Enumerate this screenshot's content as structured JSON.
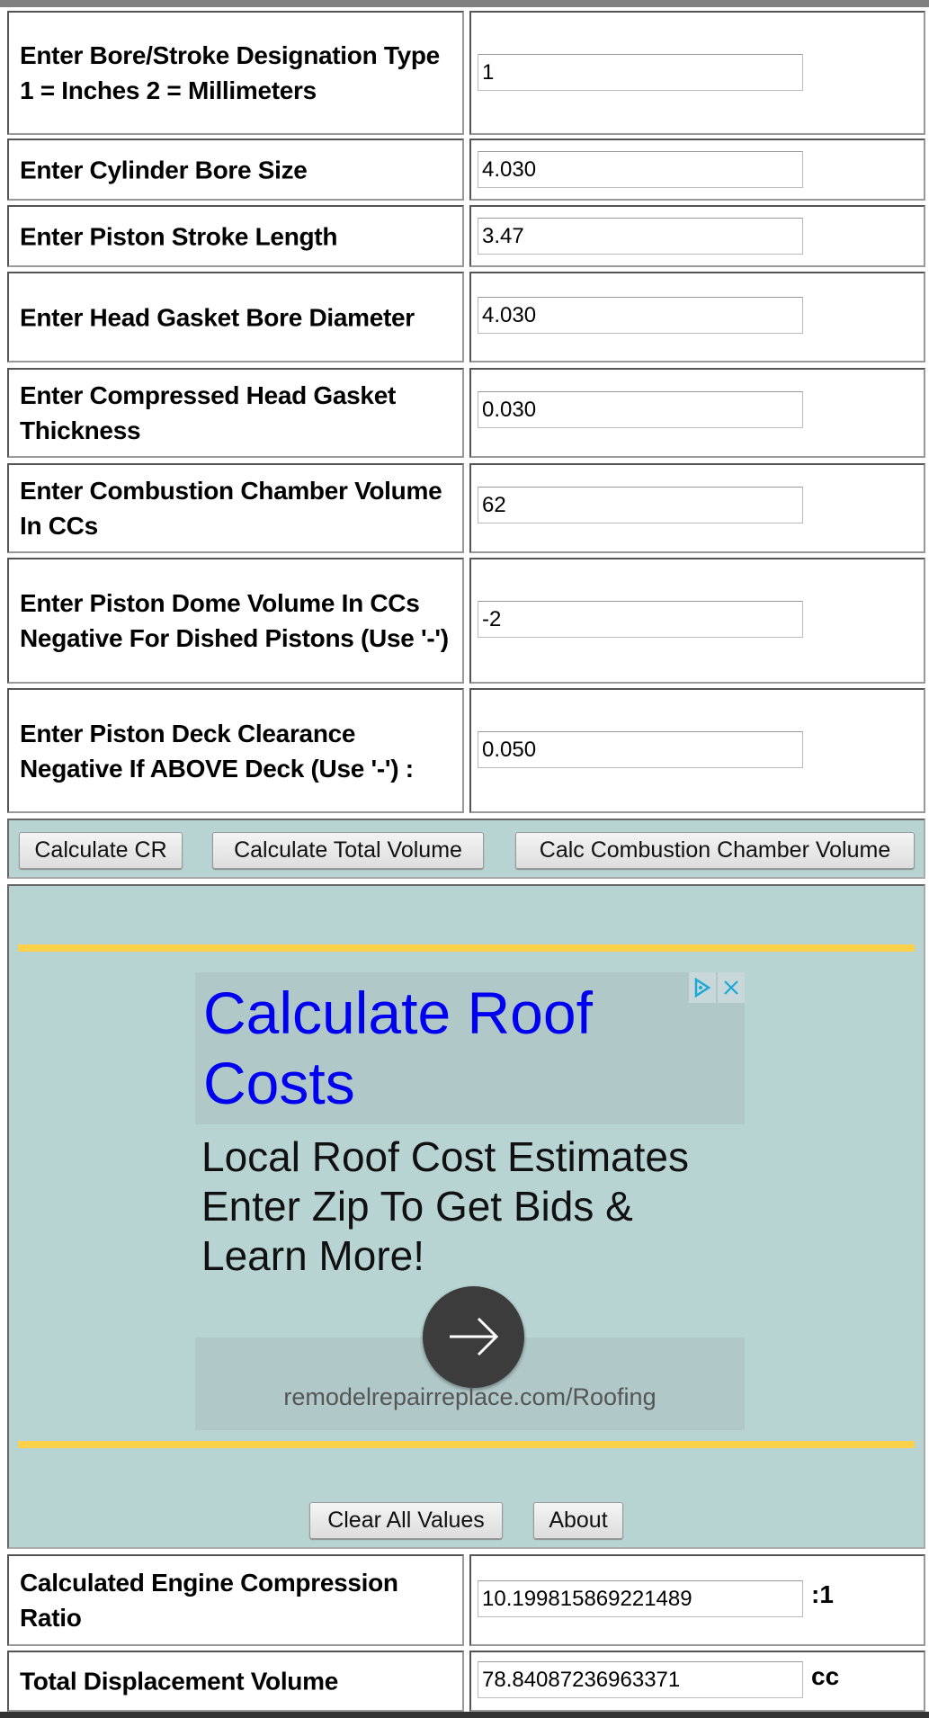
{
  "inputs": [
    {
      "label_lines": [
        "Enter Bore/Stroke Designation Type",
        "1 = Inches 2 = Millimeters"
      ],
      "value": "1"
    },
    {
      "label": "Enter Cylinder Bore Size",
      "value": "4.030"
    },
    {
      "label": "Enter Piston Stroke Length",
      "value": "3.47"
    },
    {
      "label": "Enter Head Gasket Bore Diameter",
      "value": "4.030"
    },
    {
      "label": "Enter Compressed Head Gasket Thickness",
      "value": "0.030"
    },
    {
      "label": "Enter Combustion Chamber Volume In CCs",
      "value": "62"
    },
    {
      "label": "Enter Piston Dome Volume In CCs Negative For Dished Pistons (Use '-')",
      "value": "-2"
    },
    {
      "label": "Enter Piston Deck Clearance Negative If ABOVE Deck (Use '-') :",
      "value": "0.050"
    }
  ],
  "buttons": {
    "calc_cr": "Calculate CR",
    "calc_total": "Calculate Total Volume",
    "calc_chamber": "Calc Combustion Chamber Volume",
    "clear": "Clear All Values",
    "about": "About"
  },
  "ad": {
    "title": "Calculate Roof Costs",
    "body": "Local Roof Cost Estimates Enter Zip To Get Bids & Learn More!",
    "url": "remodelrepairreplace.com/Roofing",
    "accent_color": "#ffd04a",
    "title_color": "#0000f0"
  },
  "results": [
    {
      "label": "Calculated Engine Compression Ratio",
      "value": "10.199815869221489",
      "unit": ":1"
    },
    {
      "label": "Total Displacement Volume",
      "value": "78.84087236963371",
      "unit": "cc"
    }
  ]
}
